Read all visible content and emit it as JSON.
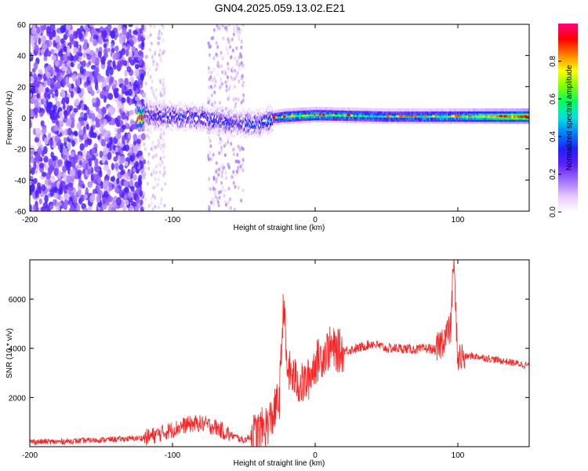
{
  "figure": {
    "title": "GN04.2025.059.13.02.E21"
  },
  "chart_data": [
    {
      "type": "heatmap",
      "xlabel": "Height of straight line (km)",
      "ylabel": "Frequency (Hz)",
      "xlim": [
        -200,
        150
      ],
      "ylim": [
        -60,
        60
      ],
      "x_ticks": [
        -200,
        -100,
        0,
        100
      ],
      "y_ticks": [
        -60,
        -40,
        -20,
        0,
        20,
        40,
        60
      ],
      "grid": false,
      "colorbar": {
        "label": "Normalized spectral amplitude",
        "range": [
          0,
          1
        ],
        "ticks": [
          0.0,
          0.2,
          0.4,
          0.6,
          0.8
        ],
        "colormap": [
          "#ffffff",
          "#e6c8ff",
          "#a070ff",
          "#6020ff",
          "#2020ff",
          "#0080ff",
          "#00e0e0",
          "#00ff60",
          "#80ff00",
          "#ffff00",
          "#ff8000",
          "#ff0000",
          "#ff0080"
        ]
      },
      "ridge": [
        {
          "x": -120,
          "freq": 2,
          "amp": 0.3
        },
        {
          "x": -100,
          "freq": 1,
          "amp": 0.3
        },
        {
          "x": -80,
          "freq": 0,
          "amp": 0.3
        },
        {
          "x": -60,
          "freq": -3,
          "amp": 0.3
        },
        {
          "x": -40,
          "freq": -4,
          "amp": 0.3
        },
        {
          "x": -30,
          "freq": 0,
          "amp": 0.4
        },
        {
          "x": -20,
          "freq": 1,
          "amp": 0.6
        },
        {
          "x": 0,
          "freq": 2,
          "amp": 0.6
        },
        {
          "x": 50,
          "freq": 1,
          "amp": 0.5
        },
        {
          "x": 100,
          "freq": 1,
          "amp": 0.6
        },
        {
          "x": 150,
          "freq": 1,
          "amp": 0.9
        }
      ]
    },
    {
      "type": "line",
      "xlabel": "Height of straight line (km)",
      "ylabel": "SNR (10 * v/v)",
      "xlim": [
        -200,
        150
      ],
      "ylim": [
        0,
        7600
      ],
      "x_ticks": [
        -200,
        -100,
        0,
        100
      ],
      "y_ticks": [
        2000,
        4000,
        6000
      ],
      "grid": false,
      "color": "#ff2020",
      "series": [
        {
          "x": [
            -200,
            -180,
            -160,
            -140,
            -120,
            -110,
            -100,
            -90,
            -80,
            -70,
            -60,
            -50,
            -40,
            -35,
            -30,
            -25,
            -22,
            -20,
            -15,
            -10,
            -5,
            0,
            5,
            10,
            15,
            20,
            30,
            40,
            50,
            60,
            70,
            80,
            85,
            90,
            95,
            97,
            100,
            110,
            120,
            130,
            140,
            150
          ],
          "y": [
            200,
            200,
            250,
            300,
            350,
            500,
            700,
            900,
            950,
            800,
            500,
            250,
            600,
            800,
            1200,
            2000,
            6100,
            3200,
            2800,
            2500,
            2700,
            3400,
            3700,
            4000,
            3900,
            3900,
            4000,
            4200,
            4000,
            4000,
            3950,
            4000,
            3900,
            4400,
            4800,
            7600,
            3600,
            3700,
            3600,
            3500,
            3400,
            3300
          ]
        }
      ]
    }
  ]
}
